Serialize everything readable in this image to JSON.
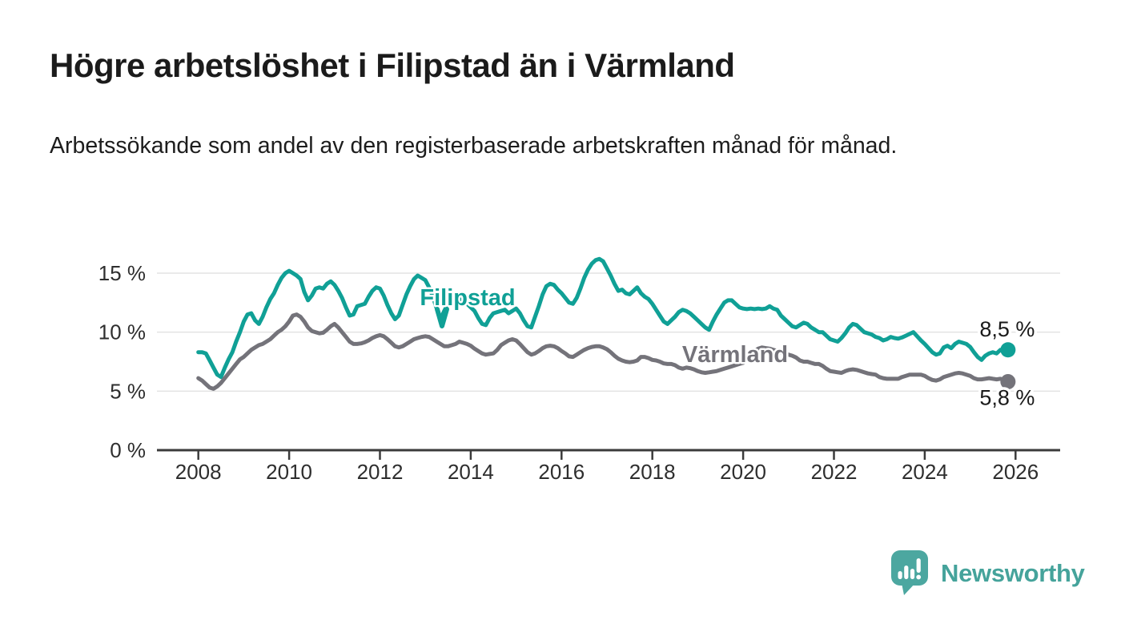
{
  "header": {
    "title": "Högre arbetslöshet i Filipstad än i Värmland",
    "subtitle": "Arbetssökande som andel av den registerbaserade arbetskraften månad för månad."
  },
  "footer": {
    "brand": "Newsworthy",
    "logo_icon": "newsworthy-speech-bubble-bar-chart-icon"
  },
  "colors": {
    "filipstad_line": "#10A096",
    "varmland_line": "#74737A",
    "grid_line": "#E3E3E3",
    "axis_line": "#3B3B3B",
    "tick_text": "#2E2E2E",
    "end_label_text": "#1A1A1A",
    "brand_teal": "#45A39B",
    "logo_fill": "#4CA7A0"
  },
  "chart_data": {
    "type": "line",
    "unit": "%",
    "x_start_year": 2008.0,
    "x_step_years": 0.0833333,
    "x_end_year": 2025.83,
    "xlim": [
      2007.1,
      2027.0
    ],
    "ylim": [
      0,
      17
    ],
    "grid": "horizontal",
    "legend_position": "inline-labels-on-lines",
    "x_ticks": [
      {
        "value": 2008,
        "label": "2008"
      },
      {
        "value": 2010,
        "label": "2010"
      },
      {
        "value": 2012,
        "label": "2012"
      },
      {
        "value": 2014,
        "label": "2014"
      },
      {
        "value": 2016,
        "label": "2016"
      },
      {
        "value": 2018,
        "label": "2018"
      },
      {
        "value": 2020,
        "label": "2020"
      },
      {
        "value": 2022,
        "label": "2022"
      },
      {
        "value": 2024,
        "label": "2024"
      },
      {
        "value": 2026,
        "label": "2026"
      }
    ],
    "y_ticks": [
      {
        "value": 0,
        "label": "0 %"
      },
      {
        "value": 5,
        "label": "5 %"
      },
      {
        "value": 10,
        "label": "10 %"
      },
      {
        "value": 15,
        "label": "15 %"
      }
    ],
    "series": [
      {
        "name": "Filipstad",
        "color": "#10A096",
        "end_label": "8,5 %",
        "end_value": 8.5,
        "values": [
          8.3,
          8.3,
          8.2,
          7.6,
          7.0,
          6.4,
          6.2,
          7.0,
          7.7,
          8.3,
          9.2,
          10.0,
          10.9,
          11.5,
          11.6,
          11.0,
          10.7,
          11.3,
          12.1,
          12.8,
          13.3,
          14.0,
          14.6,
          15.0,
          15.2,
          15.0,
          14.8,
          14.5,
          13.4,
          12.7,
          13.1,
          13.7,
          13.8,
          13.7,
          14.1,
          14.3,
          14.0,
          13.5,
          12.9,
          12.1,
          11.4,
          11.5,
          12.2,
          12.3,
          12.4,
          13.0,
          13.5,
          13.8,
          13.7,
          13.1,
          12.3,
          11.6,
          11.1,
          11.4,
          12.3,
          13.2,
          13.9,
          14.5,
          14.8,
          14.6,
          14.4,
          13.8,
          13.0,
          12.0,
          11.1,
          11.8,
          12.4,
          12.6,
          12.7,
          12.8,
          12.6,
          12.4,
          12.1,
          11.8,
          11.2,
          10.7,
          10.6,
          11.2,
          11.6,
          11.7,
          11.8,
          11.9,
          11.6,
          11.8,
          12.0,
          11.6,
          11.0,
          10.5,
          10.4,
          11.3,
          12.2,
          13.2,
          13.9,
          14.1,
          14.0,
          13.6,
          13.3,
          12.9,
          12.5,
          12.4,
          12.9,
          13.7,
          14.6,
          15.3,
          15.8,
          16.1,
          16.2,
          16.0,
          15.4,
          14.8,
          14.1,
          13.5,
          13.6,
          13.3,
          13.2,
          13.5,
          13.8,
          13.3,
          13.0,
          12.8,
          12.4,
          11.9,
          11.4,
          10.9,
          10.7,
          11.0,
          11.3,
          11.7,
          11.9,
          11.8,
          11.6,
          11.3,
          11.0,
          10.7,
          10.4,
          10.2,
          10.9,
          11.5,
          12.0,
          12.5,
          12.7,
          12.7,
          12.4,
          12.1,
          12.0,
          11.95,
          12.0,
          11.95,
          12.0,
          11.95,
          12.0,
          12.2,
          12.0,
          11.9,
          11.4,
          11.1,
          10.8,
          10.5,
          10.4,
          10.6,
          10.8,
          10.7,
          10.4,
          10.2,
          10.0,
          10.0,
          9.7,
          9.4,
          9.3,
          9.2,
          9.5,
          9.9,
          10.4,
          10.7,
          10.6,
          10.3,
          10.0,
          9.9,
          9.8,
          9.6,
          9.5,
          9.3,
          9.4,
          9.6,
          9.5,
          9.45,
          9.55,
          9.7,
          9.85,
          10.0,
          9.65,
          9.3,
          9.0,
          8.65,
          8.3,
          8.1,
          8.2,
          8.7,
          8.85,
          8.65,
          9.0,
          9.2,
          9.1,
          9.0,
          8.75,
          8.3,
          7.9,
          7.65,
          8.0,
          8.2,
          8.3,
          8.2,
          8.5,
          8.45,
          8.5
        ]
      },
      {
        "name": "Värmland",
        "color": "#74737A",
        "end_label": "5,8 %",
        "end_value": 5.8,
        "values": [
          6.1,
          5.9,
          5.6,
          5.3,
          5.2,
          5.4,
          5.7,
          6.1,
          6.5,
          6.9,
          7.3,
          7.7,
          7.9,
          8.2,
          8.5,
          8.7,
          8.9,
          9.0,
          9.2,
          9.4,
          9.7,
          10.0,
          10.2,
          10.5,
          10.9,
          11.4,
          11.5,
          11.3,
          10.9,
          10.4,
          10.1,
          10.0,
          9.9,
          9.95,
          10.2,
          10.5,
          10.7,
          10.4,
          10.0,
          9.6,
          9.2,
          9.0,
          9.0,
          9.05,
          9.15,
          9.3,
          9.5,
          9.65,
          9.75,
          9.65,
          9.4,
          9.1,
          8.8,
          8.7,
          8.8,
          9.0,
          9.2,
          9.4,
          9.5,
          9.6,
          9.65,
          9.6,
          9.4,
          9.2,
          9.0,
          8.8,
          8.8,
          8.9,
          9.0,
          9.2,
          9.1,
          9.0,
          8.85,
          8.6,
          8.4,
          8.2,
          8.1,
          8.15,
          8.2,
          8.5,
          8.9,
          9.1,
          9.3,
          9.4,
          9.3,
          9.0,
          8.65,
          8.3,
          8.1,
          8.2,
          8.4,
          8.65,
          8.8,
          8.85,
          8.8,
          8.65,
          8.4,
          8.2,
          7.95,
          7.9,
          8.1,
          8.3,
          8.5,
          8.65,
          8.75,
          8.8,
          8.8,
          8.7,
          8.55,
          8.3,
          8.0,
          7.75,
          7.6,
          7.5,
          7.45,
          7.5,
          7.6,
          7.9,
          7.9,
          7.8,
          7.65,
          7.6,
          7.5,
          7.35,
          7.3,
          7.3,
          7.2,
          7.0,
          6.9,
          7.0,
          6.95,
          6.85,
          6.7,
          6.6,
          6.55,
          6.6,
          6.65,
          6.7,
          6.8,
          6.9,
          7.0,
          7.1,
          7.2,
          7.3,
          7.4,
          7.7,
          8.1,
          8.4,
          8.6,
          8.7,
          8.65,
          8.6,
          8.5,
          8.4,
          8.3,
          8.2,
          8.1,
          8.0,
          7.85,
          7.6,
          7.5,
          7.5,
          7.4,
          7.3,
          7.3,
          7.15,
          6.9,
          6.7,
          6.65,
          6.6,
          6.55,
          6.7,
          6.8,
          6.85,
          6.8,
          6.7,
          6.6,
          6.5,
          6.45,
          6.4,
          6.2,
          6.1,
          6.05,
          6.05,
          6.05,
          6.05,
          6.2,
          6.3,
          6.4,
          6.4,
          6.4,
          6.4,
          6.3,
          6.1,
          5.95,
          5.9,
          6.0,
          6.2,
          6.3,
          6.4,
          6.5,
          6.55,
          6.5,
          6.4,
          6.3,
          6.1,
          6.0,
          6.0,
          6.05,
          6.1,
          6.05,
          6.0,
          6.05,
          5.95,
          5.8
        ]
      }
    ]
  }
}
